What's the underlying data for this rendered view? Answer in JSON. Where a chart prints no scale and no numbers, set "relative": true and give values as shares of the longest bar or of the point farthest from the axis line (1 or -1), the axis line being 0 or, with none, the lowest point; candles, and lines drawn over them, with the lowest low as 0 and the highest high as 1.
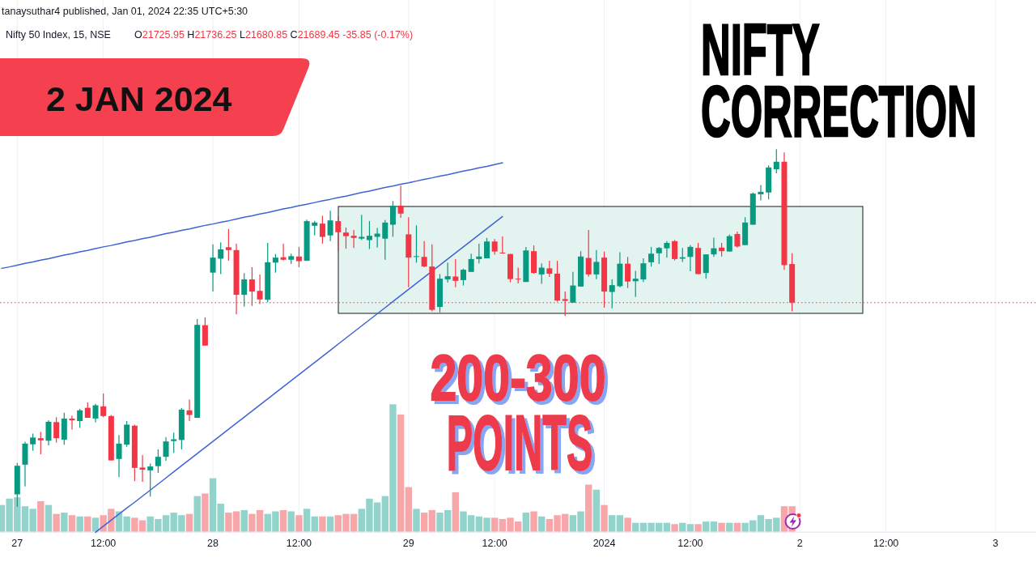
{
  "chart_data": [
    {
      "type": "candlestick",
      "relative": true,
      "title": "NIFTY CORRECTION",
      "subtitle": "2 JAN 2024",
      "annotations": [
        "tanaysuthar4 published, Jan 01, 2024 22:35 UTC+5:30",
        "Nifty 50 Index, 15, NSE",
        "O21725.95 H21736.25 L21680.85 C21689.45 -35.85 (-0.17%)",
        "200-300 POINTS"
      ],
      "categories": [
        null,
        null,
        null,
        null,
        null,
        null,
        null,
        null,
        null,
        null,
        null,
        null,
        null,
        null,
        null,
        null,
        null,
        null,
        null,
        null,
        null,
        null,
        null,
        null,
        null,
        null,
        null,
        null,
        null,
        null,
        null,
        null,
        null,
        null,
        null,
        null,
        null,
        null,
        null,
        null,
        null,
        null,
        null,
        null,
        null,
        null,
        null,
        null,
        null,
        null,
        null,
        null,
        null,
        null,
        null,
        null,
        null,
        null,
        null,
        null,
        null,
        null,
        null,
        null,
        null,
        null,
        null,
        null,
        null,
        null,
        null,
        null,
        null,
        null,
        null,
        null,
        null,
        null,
        null,
        null,
        null,
        null,
        null,
        null,
        null,
        null,
        null,
        null,
        null,
        null,
        null,
        null,
        null,
        null,
        null,
        null,
        null,
        null,
        null,
        null,
        null,
        null,
        null,
        null,
        null,
        null,
        null,
        null,
        null,
        null,
        null,
        null,
        null,
        null,
        null,
        null,
        null,
        null,
        null,
        null,
        null,
        null,
        null,
        null,
        null,
        null,
        null,
        null,
        null,
        null,
        null,
        null,
        null
      ],
      "ohlc": [
        null,
        null,
        [
          0.035,
          0.123,
          0,
          0.115
        ],
        [
          0.118,
          0.182,
          0.057,
          0.177
        ],
        [
          0.175,
          0.205,
          0.157,
          0.194
        ],
        [
          0.192,
          0.21,
          0.147,
          0.186
        ],
        [
          0.185,
          0.242,
          0.172,
          0.238
        ],
        [
          0.237,
          0.251,
          0.18,
          0.192
        ],
        [
          0.188,
          0.263,
          0.174,
          0.247
        ],
        [
          0.247,
          0.255,
          0.216,
          0.242
        ],
        [
          0.24,
          0.274,
          0.221,
          0.27
        ],
        [
          0.277,
          0.292,
          0.249,
          0.249
        ],
        [
          0.247,
          0.288,
          0.236,
          0.284
        ],
        [
          0.281,
          0.317,
          0.251,
          0.254
        ],
        [
          0.254,
          0.257,
          0.13,
          0.13
        ],
        [
          0.134,
          0.201,
          0.083,
          0.177
        ],
        [
          0.174,
          0.24,
          0.168,
          0.23
        ],
        [
          0.227,
          0.23,
          0.072,
          0.109
        ],
        [
          0.11,
          0.145,
          0.07,
          0.104
        ],
        [
          0.102,
          0.121,
          0.029,
          0.113
        ],
        [
          0.114,
          0.161,
          0.095,
          0.14
        ],
        [
          0.14,
          0.195,
          0.129,
          0.183
        ],
        [
          0.184,
          0.208,
          0.151,
          0.189
        ],
        [
          0.187,
          0.276,
          0.161,
          0.272
        ],
        [
          0.27,
          0.3,
          0.24,
          0.257
        ],
        [
          0.249,
          0.525,
          0.249,
          0.509
        ],
        [
          0.508,
          0.53,
          0.451,
          0.451
        ],
        [
          0.655,
          0.734,
          0.602,
          0.697
        ],
        [
          0.694,
          0.74,
          0.651,
          0.72
        ],
        [
          0.726,
          0.777,
          0.688,
          0.718
        ],
        [
          0.718,
          0.736,
          0.538,
          0.593
        ],
        [
          0.593,
          0.654,
          0.56,
          0.636
        ],
        [
          0.636,
          0.67,
          0.562,
          0.602
        ],
        [
          0.604,
          0.65,
          0.567,
          0.58
        ],
        [
          0.579,
          0.738,
          0.572,
          0.684
        ],
        [
          0.683,
          0.707,
          0.655,
          0.697
        ],
        [
          0.698,
          0.736,
          0.689,
          0.691
        ],
        [
          0.691,
          0.708,
          0.679,
          0.701
        ],
        [
          0.7,
          0.727,
          0.67,
          0.687
        ],
        [
          0.688,
          0.803,
          0.688,
          0.799
        ],
        [
          0.786,
          0.8,
          0.759,
          0.795
        ],
        [
          0.792,
          0.814,
          0.736,
          0.755
        ],
        [
          0.759,
          0.828,
          0.743,
          0.801
        ],
        [
          0.799,
          0.813,
          0.715,
          0.768
        ],
        [
          0.767,
          0.781,
          0.722,
          0.757
        ],
        [
          0.758,
          0.774,
          0.724,
          0.752
        ],
        [
          0.75,
          0.817,
          0.746,
          0.755
        ],
        [
          0.746,
          0.799,
          0.721,
          0.758
        ],
        [
          0.755,
          0.78,
          0.725,
          0.764
        ],
        [
          0.75,
          0.802,
          0.691,
          0.795
        ],
        [
          0.789,
          0.855,
          0.755,
          0.842
        ],
        [
          0.842,
          0.898,
          0.808,
          0.82
        ],
        [
          0.762,
          0.81,
          0.614,
          0.697
        ],
        [
          0.699,
          0.787,
          0.683,
          0.701
        ],
        [
          0.699,
          0.743,
          0.67,
          0.672
        ],
        [
          0.672,
          0.734,
          0.547,
          0.551
        ],
        [
          0.559,
          0.651,
          0.544,
          0.638
        ],
        [
          0.636,
          0.683,
          0.627,
          0.645
        ],
        [
          0.644,
          0.693,
          0.614,
          0.632
        ],
        [
          0.634,
          0.666,
          0.619,
          0.663
        ],
        [
          0.657,
          0.708,
          0.657,
          0.693
        ],
        [
          0.693,
          0.736,
          0.681,
          0.7
        ],
        [
          0.695,
          0.752,
          0.695,
          0.742
        ],
        [
          0.742,
          0.749,
          0.705,
          0.714
        ],
        [
          0.711,
          0.756,
          0.708,
          0.709
        ],
        [
          0.707,
          0.707,
          0.628,
          0.637
        ],
        [
          0.638,
          0.669,
          0.625,
          0.636
        ],
        [
          0.629,
          0.727,
          0.629,
          0.717
        ],
        [
          0.715,
          0.731,
          0.652,
          0.654
        ],
        [
          0.65,
          0.681,
          0.624,
          0.669
        ],
        [
          0.667,
          0.688,
          0.643,
          0.652
        ],
        [
          0.652,
          0.688,
          0.574,
          0.577
        ],
        [
          0.581,
          0.602,
          0.534,
          0.576
        ],
        [
          0.571,
          0.657,
          0.571,
          0.619
        ],
        [
          0.616,
          0.715,
          0.616,
          0.7
        ],
        [
          0.696,
          0.774,
          0.644,
          0.65
        ],
        [
          0.65,
          0.718,
          0.637,
          0.685
        ],
        [
          0.697,
          0.714,
          0.557,
          0.602
        ],
        [
          0.601,
          0.636,
          0.555,
          0.62
        ],
        [
          0.617,
          0.712,
          0.614,
          0.68
        ],
        [
          0.68,
          0.699,
          0.612,
          0.63
        ],
        [
          0.631,
          0.66,
          0.587,
          0.638
        ],
        [
          0.636,
          0.695,
          0.629,
          0.681
        ],
        [
          0.684,
          0.727,
          0.672,
          0.708
        ],
        [
          0.709,
          0.727,
          0.679,
          0.724
        ],
        [
          0.723,
          0.743,
          0.697,
          0.738
        ],
        [
          0.743,
          0.746,
          0.689,
          0.693
        ],
        [
          0.694,
          0.724,
          0.685,
          0.698
        ],
        [
          0.699,
          0.732,
          0.659,
          0.727
        ],
        [
          0.724,
          0.738,
          0.651,
          0.651
        ],
        [
          0.654,
          0.706,
          0.638,
          0.706
        ],
        [
          0.706,
          0.753,
          0.699,
          0.723
        ],
        [
          0.725,
          0.738,
          0.7,
          0.715
        ],
        [
          0.714,
          0.761,
          0.714,
          0.757
        ],
        [
          0.763,
          0.77,
          0.725,
          0.728
        ],
        [
          0.732,
          0.81,
          0.732,
          0.795
        ],
        [
          0.789,
          0.879,
          0.789,
          0.876
        ],
        [
          0.874,
          0.9,
          0.857,
          0.881
        ],
        [
          0.879,
          0.955,
          0.86,
          0.949
        ],
        [
          0.944,
          1,
          0.933,
          0.965
        ],
        [
          0.965,
          0.991,
          0.663,
          0.676
        ],
        [
          0.679,
          0.709,
          0.547,
          0.571
        ],
        null,
        null,
        null,
        null,
        null,
        null,
        null,
        null,
        null,
        null,
        null,
        null,
        null,
        null,
        null,
        null,
        null,
        null,
        null,
        null,
        null,
        null,
        null,
        null,
        null,
        null,
        null,
        null,
        null,
        null,
        null
      ],
      "colors": [
        null,
        null,
        "#089981",
        "#089981",
        "#089981",
        "#f23645",
        "#089981",
        "#f23645",
        "#089981",
        "#f23645",
        "#089981",
        "#f23645",
        "#089981",
        "#f23645",
        "#f23645",
        "#089981",
        "#089981",
        "#f23645",
        "#f23645",
        "#089981",
        "#089981",
        "#089981",
        "#089981",
        "#089981",
        "#f23645",
        "#089981",
        "#f23645",
        "#089981",
        "#089981",
        "#f23645",
        "#f23645",
        "#089981",
        "#f23645",
        "#f23645",
        "#089981",
        "#089981",
        "#f23645",
        "#089981",
        "#f23645",
        "#089981",
        "#089981",
        "#f23645",
        "#089981",
        "#f23645",
        "#f23645",
        "#f23645",
        "#089981",
        "#089981",
        "#089981",
        "#089981",
        "#089981",
        "#f23645",
        "#f23645",
        "#089981",
        "#f23645",
        "#f23645",
        "#089981",
        "#089981",
        "#f23645",
        "#089981",
        "#089981",
        "#089981",
        "#089981",
        "#f23645",
        "#f23645",
        "#f23645",
        "#f23645",
        "#089981",
        "#f23645",
        "#089981",
        "#f23645",
        "#f23645",
        "#f23645",
        "#089981",
        "#089981",
        "#f23645",
        "#089981",
        "#f23645",
        "#089981",
        "#089981",
        "#f23645",
        "#089981",
        "#089981",
        "#089981",
        "#089981",
        "#089981",
        "#f23645",
        "#089981",
        "#089981",
        "#f23645",
        "#089981",
        "#089981",
        "#f23645",
        "#089981",
        "#f23645",
        "#089981",
        "#089981",
        "#089981",
        "#089981",
        "#089981",
        "#f23645",
        "#f23645",
        null,
        null,
        null,
        null,
        null,
        null,
        null,
        null,
        null,
        null,
        null,
        null,
        null,
        null,
        null,
        null,
        null,
        null,
        null,
        null,
        null,
        null,
        null,
        null,
        null,
        null,
        null,
        null,
        null,
        null,
        null
      ],
      "series": [
        {
          "type": "line",
          "color": "#3e63d6",
          "values": [
            0.667,
            0.671,
            0.676,
            0.681,
            0.685,
            0.69,
            0.694,
            0.699,
            0.704,
            0.708,
            0.713,
            0.717,
            0.722,
            0.727,
            0.731,
            0.736,
            0.741,
            0.745,
            0.75,
            0.754,
            0.759,
            0.764,
            0.768,
            0.773,
            0.777,
            0.782,
            0.787,
            0.791,
            0.796,
            0.8,
            0.805,
            0.81,
            0.814,
            0.819,
            0.823,
            0.828,
            0.833,
            0.837,
            0.842,
            0.846,
            0.851,
            0.856,
            0.86,
            0.865,
            0.869,
            0.874,
            0.879,
            0.883,
            0.888,
            0.893,
            0.897,
            0.902,
            0.906,
            0.911,
            0.916,
            0.92,
            0.925,
            0.929,
            0.934,
            0.939,
            0.943,
            0.948,
            0.952,
            0.957,
            0.962,
            null,
            null,
            null,
            null,
            null,
            null,
            null,
            null,
            null,
            null,
            null,
            null,
            null,
            null,
            null,
            null,
            null,
            null,
            null,
            null,
            null,
            null,
            null,
            null,
            null,
            null,
            null,
            null,
            null,
            null,
            null,
            null,
            null,
            null,
            null,
            null,
            null,
            null,
            null,
            null,
            null,
            null,
            null,
            null,
            null,
            null,
            null,
            null,
            null,
            null,
            null,
            null,
            null,
            null,
            null,
            null,
            null,
            null,
            null,
            null,
            null,
            null,
            null,
            null,
            null,
            null,
            null,
            null
          ]
        },
        {
          "type": "line",
          "color": "#3e63d6",
          "values": [
            null,
            null,
            null,
            null,
            null,
            null,
            null,
            null,
            null,
            null,
            null,
            null,
            -0.071,
            -0.054,
            -0.037,
            -0.02,
            -0.003,
            0.013,
            0.03,
            0.047,
            0.064,
            0.081,
            0.098,
            0.115,
            0.132,
            0.149,
            0.166,
            0.183,
            0.2,
            0.217,
            0.234,
            0.251,
            0.268,
            0.285,
            0.302,
            0.319,
            0.336,
            0.353,
            0.37,
            0.387,
            0.404,
            0.421,
            0.438,
            0.455,
            0.472,
            0.489,
            0.506,
            0.523,
            0.54,
            0.557,
            0.574,
            0.591,
            0.608,
            0.625,
            0.642,
            0.659,
            0.676,
            0.693,
            0.71,
            0.727,
            0.744,
            0.761,
            0.778,
            0.795,
            0.812,
            null,
            null,
            null,
            null,
            null,
            null,
            null,
            null,
            null,
            null,
            null,
            null,
            null,
            null,
            null,
            null,
            null,
            null,
            null,
            null,
            null,
            null,
            null,
            null,
            null,
            null,
            null,
            null,
            null,
            null,
            null,
            null,
            null,
            null,
            null,
            null,
            null,
            null,
            null,
            null,
            null,
            null,
            null,
            null,
            null,
            null,
            null,
            null,
            null,
            null,
            null,
            null,
            null,
            null,
            null,
            null,
            null,
            null,
            null,
            null,
            null,
            null,
            null,
            null,
            null,
            null,
            null,
            null
          ]
        }
      ],
      "ref_lines": [
        {
          "axis": "y",
          "value": 0.571,
          "color": "#f23645",
          "line_style": "dotted"
        }
      ]
    },
    {
      "type": "bar",
      "relative": true,
      "grid": "x",
      "categories": [
        null,
        null,
        "27",
        null,
        null,
        null,
        null,
        null,
        null,
        null,
        null,
        null,
        null,
        "12:00",
        null,
        null,
        null,
        null,
        null,
        null,
        null,
        null,
        null,
        null,
        null,
        null,
        null,
        "28",
        null,
        null,
        null,
        null,
        null,
        null,
        null,
        null,
        null,
        null,
        "12:00",
        null,
        null,
        null,
        null,
        null,
        null,
        null,
        null,
        null,
        null,
        null,
        null,
        null,
        "29",
        null,
        null,
        null,
        null,
        null,
        null,
        null,
        null,
        null,
        null,
        "12:00",
        null,
        null,
        null,
        null,
        null,
        null,
        null,
        null,
        null,
        null,
        null,
        null,
        null,
        "2024",
        null,
        null,
        null,
        null,
        null,
        null,
        null,
        null,
        null,
        null,
        "12:00",
        null,
        null,
        null,
        null,
        null,
        null,
        null,
        null,
        null,
        null,
        null,
        null,
        null,
        "2",
        null,
        null,
        null,
        null,
        null,
        null,
        null,
        null,
        null,
        null,
        "12:00",
        null,
        null,
        null,
        null,
        null,
        null,
        null,
        null,
        null,
        null,
        null,
        null,
        null,
        "3",
        null,
        null,
        null,
        null,
        null
      ],
      "values": [
        0.21,
        0.26,
        0.27,
        0.2,
        0.18,
        0.24,
        0.21,
        0.14,
        0.15,
        0.13,
        0.12,
        0.12,
        0.11,
        0.13,
        0.18,
        0.16,
        0.12,
        0.11,
        0.09,
        0.12,
        0.1,
        0.13,
        0.15,
        0.13,
        0.14,
        0.28,
        0.3,
        0.42,
        0.22,
        0.15,
        0.16,
        0.17,
        0.14,
        0.17,
        0.14,
        0.16,
        0.17,
        0.16,
        0.13,
        0.18,
        0.12,
        0.12,
        0.12,
        0.13,
        0.14,
        0.14,
        0.18,
        0.26,
        0.23,
        0.28,
        1,
        0.92,
        0.35,
        0.18,
        0.15,
        0.17,
        0.15,
        0.17,
        0.31,
        0.16,
        0.13,
        0.12,
        0.11,
        0.11,
        0.1,
        0.11,
        0.08,
        0.15,
        0.16,
        0.12,
        0.1,
        0.13,
        0.14,
        0.13,
        0.16,
        0.37,
        0.33,
        0.21,
        0.13,
        0.13,
        0.11,
        0.07,
        0.07,
        0.07,
        0.07,
        0.07,
        0.06,
        0.07,
        0.06,
        0.06,
        0.08,
        0.08,
        0.07,
        0.07,
        0.07,
        0.07,
        0.09,
        0.13,
        0.1,
        0.11,
        0.2,
        0.2,
        null,
        null,
        null,
        null,
        null,
        null,
        null,
        null,
        null,
        null,
        null,
        null,
        null,
        null,
        null,
        null,
        null,
        null,
        null,
        null,
        null,
        null,
        null,
        null,
        null,
        null,
        null,
        null,
        null,
        null,
        null
      ],
      "colors": [
        "#92d3cb",
        "#92d3cb",
        "#92d3cb",
        "#92d3cb",
        "#92d3cb",
        "#f7a6a9",
        "#92d3cb",
        "#f7a6a9",
        "#92d3cb",
        "#f7a6a9",
        "#92d3cb",
        "#f7a6a9",
        "#92d3cb",
        "#f7a6a9",
        "#f7a6a9",
        "#92d3cb",
        "#92d3cb",
        "#f7a6a9",
        "#f7a6a9",
        "#92d3cb",
        "#92d3cb",
        "#92d3cb",
        "#92d3cb",
        "#92d3cb",
        "#f7a6a9",
        "#92d3cb",
        "#f7a6a9",
        "#92d3cb",
        "#92d3cb",
        "#f7a6a9",
        "#f7a6a9",
        "#92d3cb",
        "#f7a6a9",
        "#f7a6a9",
        "#92d3cb",
        "#92d3cb",
        "#f7a6a9",
        "#92d3cb",
        "#f7a6a9",
        "#92d3cb",
        "#92d3cb",
        "#f7a6a9",
        "#92d3cb",
        "#f7a6a9",
        "#f7a6a9",
        "#f7a6a9",
        "#92d3cb",
        "#92d3cb",
        "#92d3cb",
        "#92d3cb",
        "#92d3cb",
        "#f7a6a9",
        "#f7a6a9",
        "#92d3cb",
        "#f7a6a9",
        "#f7a6a9",
        "#92d3cb",
        "#92d3cb",
        "#f7a6a9",
        "#92d3cb",
        "#92d3cb",
        "#92d3cb",
        "#92d3cb",
        "#f7a6a9",
        "#f7a6a9",
        "#f7a6a9",
        "#f7a6a9",
        "#92d3cb",
        "#f7a6a9",
        "#92d3cb",
        "#f7a6a9",
        "#f7a6a9",
        "#f7a6a9",
        "#92d3cb",
        "#92d3cb",
        "#f7a6a9",
        "#92d3cb",
        "#f7a6a9",
        "#92d3cb",
        "#92d3cb",
        "#f7a6a9",
        "#92d3cb",
        "#92d3cb",
        "#92d3cb",
        "#92d3cb",
        "#92d3cb",
        "#f7a6a9",
        "#92d3cb",
        "#92d3cb",
        "#f7a6a9",
        "#92d3cb",
        "#92d3cb",
        "#f7a6a9",
        "#92d3cb",
        "#f7a6a9",
        "#92d3cb",
        "#92d3cb",
        "#92d3cb",
        "#92d3cb",
        "#92d3cb",
        "#f7a6a9",
        "#f7a6a9",
        null,
        null,
        null,
        null,
        null,
        null,
        null,
        null,
        null,
        null,
        null,
        null,
        null,
        null,
        null,
        null,
        null,
        null,
        null,
        null,
        null,
        null,
        null,
        null,
        null,
        null,
        null,
        null,
        null,
        null,
        null
      ]
    }
  ]
}
